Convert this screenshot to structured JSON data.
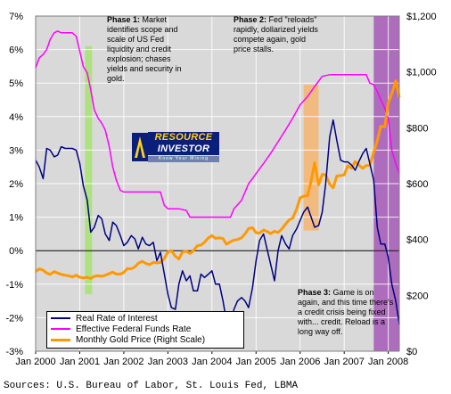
{
  "source": "Sources: U.S. Bureau of Labor, St. Louis Fed, LBMA",
  "logo": {
    "line1": "RESOURCE",
    "line2": "INVESTOR",
    "line3": "Know Your Mining"
  },
  "annotations": {
    "phase1": {
      "title": "Phase 1:",
      "text": "Market identifies scope and scale of US Fed liquidity and credit explosion; chases yields and security in gold."
    },
    "phase2": {
      "title": "Phase 2:",
      "text": "Fed \"reloads\" rapidly, dollarized yields compete again, gold price stalls."
    },
    "phase3": {
      "title": "Phase 3:",
      "text": "Game is on again, and this time there's a credit crisis being fixed with... credit. Reload is a long way off."
    }
  },
  "colors": {
    "plot_bg": "#d9d9d9",
    "real_rate": "#000080",
    "fed_funds": "#ff00ff",
    "gold": "#ff9900",
    "phase1": "#a6e36e",
    "phase2": "#f5b56e",
    "phase3": "#a85fb8"
  },
  "chart_data": {
    "type": "line",
    "title": "",
    "x_labels": [
      "Jan 2000",
      "Jan 2001",
      "Jan 2002",
      "Jan 2003",
      "Jan 2004",
      "Jan 2005",
      "Jan 2006",
      "Jan 2007",
      "Jan 2008"
    ],
    "xlim": [
      2000.0,
      2008.25
    ],
    "y_left": {
      "ylim": [
        -3,
        7
      ],
      "ticks": [
        "-3%",
        "-2%",
        "-1%",
        "0%",
        "1%",
        "2%",
        "3%",
        "4%",
        "5%",
        "6%",
        "7%"
      ]
    },
    "y_right": {
      "ylim": [
        0,
        1200
      ],
      "ticks": [
        "$0",
        "$200",
        "$400",
        "$600",
        "$800",
        "$1,000",
        "$1,200"
      ]
    },
    "grid": true,
    "legend_placement": "bottom-left",
    "shaded_regions": [
      {
        "phase": "phase1",
        "x": [
          2001.12,
          2001.28
        ],
        "y": [
          -1.3,
          6.1
        ]
      },
      {
        "phase": "phase2",
        "x": [
          2006.08,
          2006.42
        ],
        "y": [
          0.6,
          4.95
        ]
      },
      {
        "phase": "phase3",
        "x": [
          2007.67,
          2008.25
        ],
        "y": [
          -3,
          7
        ]
      }
    ],
    "series": [
      {
        "name": "Real Rate of Interest",
        "axis": "left",
        "points": [
          [
            2000.0,
            2.7
          ],
          [
            2000.08,
            2.5
          ],
          [
            2000.17,
            2.15
          ],
          [
            2000.25,
            3.05
          ],
          [
            2000.33,
            3.0
          ],
          [
            2000.42,
            2.8
          ],
          [
            2000.5,
            2.85
          ],
          [
            2000.58,
            3.1
          ],
          [
            2000.67,
            3.05
          ],
          [
            2000.75,
            3.05
          ],
          [
            2000.83,
            3.05
          ],
          [
            2000.92,
            3.0
          ],
          [
            2001.0,
            2.6
          ],
          [
            2001.08,
            1.95
          ],
          [
            2001.17,
            1.5
          ],
          [
            2001.25,
            0.55
          ],
          [
            2001.33,
            0.7
          ],
          [
            2001.42,
            1.05
          ],
          [
            2001.5,
            0.95
          ],
          [
            2001.58,
            0.5
          ],
          [
            2001.67,
            0.3
          ],
          [
            2001.75,
            0.85
          ],
          [
            2001.83,
            0.75
          ],
          [
            2001.92,
            0.45
          ],
          [
            2002.0,
            0.15
          ],
          [
            2002.08,
            0.25
          ],
          [
            2002.17,
            0.45
          ],
          [
            2002.25,
            0.35
          ],
          [
            2002.33,
            0.05
          ],
          [
            2002.42,
            0.4
          ],
          [
            2002.5,
            0.2
          ],
          [
            2002.58,
            0.15
          ],
          [
            2002.67,
            0.25
          ],
          [
            2002.75,
            -0.3
          ],
          [
            2002.83,
            -0.05
          ],
          [
            2002.92,
            -0.7
          ],
          [
            2003.0,
            -1.3
          ],
          [
            2003.08,
            -1.7
          ],
          [
            2003.17,
            -1.75
          ],
          [
            2003.25,
            -1.0
          ],
          [
            2003.33,
            -0.6
          ],
          [
            2003.42,
            -0.9
          ],
          [
            2003.5,
            -0.75
          ],
          [
            2003.58,
            -1.2
          ],
          [
            2003.67,
            -1.2
          ],
          [
            2003.75,
            -0.7
          ],
          [
            2003.83,
            -0.8
          ],
          [
            2003.92,
            -0.7
          ],
          [
            2004.0,
            -0.6
          ],
          [
            2004.08,
            -1.0
          ],
          [
            2004.17,
            -1.0
          ],
          [
            2004.25,
            -1.5
          ],
          [
            2004.33,
            -2.1
          ],
          [
            2004.42,
            -2.2
          ],
          [
            2004.5,
            -1.75
          ],
          [
            2004.58,
            -1.5
          ],
          [
            2004.67,
            -1.4
          ],
          [
            2004.75,
            -1.5
          ],
          [
            2004.83,
            -1.7
          ],
          [
            2004.92,
            -1.1
          ],
          [
            2005.0,
            -0.3
          ],
          [
            2005.08,
            0.3
          ],
          [
            2005.17,
            0.5
          ],
          [
            2005.25,
            0.05
          ],
          [
            2005.33,
            -0.4
          ],
          [
            2005.42,
            -0.9
          ],
          [
            2005.5,
            0.0
          ],
          [
            2005.58,
            0.45
          ],
          [
            2005.67,
            0.2
          ],
          [
            2005.75,
            0.05
          ],
          [
            2005.83,
            0.45
          ],
          [
            2005.92,
            0.65
          ],
          [
            2006.0,
            0.9
          ],
          [
            2006.08,
            1.15
          ],
          [
            2006.17,
            1.3
          ],
          [
            2006.25,
            1.0
          ],
          [
            2006.33,
            0.7
          ],
          [
            2006.42,
            0.75
          ],
          [
            2006.5,
            1.15
          ],
          [
            2006.58,
            2.0
          ],
          [
            2006.67,
            3.4
          ],
          [
            2006.75,
            3.9
          ],
          [
            2006.83,
            3.3
          ],
          [
            2006.92,
            2.7
          ],
          [
            2007.0,
            2.65
          ],
          [
            2007.08,
            2.65
          ],
          [
            2007.17,
            2.55
          ],
          [
            2007.25,
            2.4
          ],
          [
            2007.33,
            2.65
          ],
          [
            2007.42,
            2.9
          ],
          [
            2007.5,
            3.05
          ],
          [
            2007.58,
            2.6
          ],
          [
            2007.67,
            2.1
          ],
          [
            2007.75,
            0.7
          ],
          [
            2007.83,
            0.2
          ],
          [
            2007.92,
            0.2
          ],
          [
            2008.0,
            -0.2
          ],
          [
            2008.08,
            -1.0
          ],
          [
            2008.17,
            -1.5
          ],
          [
            2008.25,
            -2.2
          ]
        ]
      },
      {
        "name": "Effective Federal Funds Rate",
        "axis": "left",
        "points": [
          [
            2000.0,
            5.45
          ],
          [
            2000.08,
            5.75
          ],
          [
            2000.17,
            5.85
          ],
          [
            2000.25,
            6.0
          ],
          [
            2000.33,
            6.3
          ],
          [
            2000.42,
            6.5
          ],
          [
            2000.5,
            6.55
          ],
          [
            2000.58,
            6.5
          ],
          [
            2000.67,
            6.5
          ],
          [
            2000.75,
            6.5
          ],
          [
            2000.83,
            6.5
          ],
          [
            2000.92,
            6.4
          ],
          [
            2001.0,
            5.95
          ],
          [
            2001.08,
            5.5
          ],
          [
            2001.17,
            5.3
          ],
          [
            2001.25,
            4.8
          ],
          [
            2001.33,
            4.2
          ],
          [
            2001.42,
            3.95
          ],
          [
            2001.5,
            3.8
          ],
          [
            2001.58,
            3.6
          ],
          [
            2001.67,
            3.1
          ],
          [
            2001.75,
            2.5
          ],
          [
            2001.83,
            2.1
          ],
          [
            2001.92,
            1.8
          ],
          [
            2002.0,
            1.75
          ],
          [
            2002.33,
            1.75
          ],
          [
            2002.67,
            1.75
          ],
          [
            2002.83,
            1.75
          ],
          [
            2002.92,
            1.35
          ],
          [
            2003.0,
            1.25
          ],
          [
            2003.25,
            1.25
          ],
          [
            2003.42,
            1.2
          ],
          [
            2003.5,
            1.0
          ],
          [
            2004.0,
            1.0
          ],
          [
            2004.42,
            1.0
          ],
          [
            2004.5,
            1.25
          ],
          [
            2004.67,
            1.5
          ],
          [
            2004.83,
            2.0
          ],
          [
            2004.92,
            2.15
          ],
          [
            2005.0,
            2.3
          ],
          [
            2005.17,
            2.6
          ],
          [
            2005.33,
            2.9
          ],
          [
            2005.5,
            3.25
          ],
          [
            2005.67,
            3.6
          ],
          [
            2005.83,
            3.95
          ],
          [
            2006.0,
            4.35
          ],
          [
            2006.17,
            4.6
          ],
          [
            2006.33,
            4.9
          ],
          [
            2006.5,
            5.2
          ],
          [
            2006.67,
            5.25
          ],
          [
            2007.0,
            5.25
          ],
          [
            2007.5,
            5.25
          ],
          [
            2007.58,
            5.0
          ],
          [
            2007.67,
            4.95
          ],
          [
            2007.75,
            4.75
          ],
          [
            2007.83,
            4.5
          ],
          [
            2007.92,
            4.25
          ],
          [
            2008.0,
            3.95
          ],
          [
            2008.08,
            3.0
          ],
          [
            2008.17,
            2.6
          ],
          [
            2008.25,
            2.3
          ]
        ]
      },
      {
        "name": "Monthly Gold Price (Right Scale)",
        "axis": "right",
        "points": [
          [
            2000.0,
            285
          ],
          [
            2000.08,
            295
          ],
          [
            2000.17,
            290
          ],
          [
            2000.25,
            280
          ],
          [
            2000.33,
            275
          ],
          [
            2000.42,
            285
          ],
          [
            2000.5,
            280
          ],
          [
            2000.58,
            275
          ],
          [
            2000.67,
            272
          ],
          [
            2000.75,
            270
          ],
          [
            2000.83,
            266
          ],
          [
            2000.92,
            272
          ],
          [
            2001.0,
            265
          ],
          [
            2001.08,
            262
          ],
          [
            2001.17,
            265
          ],
          [
            2001.25,
            260
          ],
          [
            2001.33,
            268
          ],
          [
            2001.42,
            270
          ],
          [
            2001.5,
            268
          ],
          [
            2001.58,
            272
          ],
          [
            2001.67,
            278
          ],
          [
            2001.75,
            283
          ],
          [
            2001.83,
            276
          ],
          [
            2001.92,
            276
          ],
          [
            2002.0,
            282
          ],
          [
            2002.08,
            296
          ],
          [
            2002.17,
            295
          ],
          [
            2002.25,
            302
          ],
          [
            2002.33,
            315
          ],
          [
            2002.42,
            322
          ],
          [
            2002.5,
            314
          ],
          [
            2002.58,
            310
          ],
          [
            2002.67,
            318
          ],
          [
            2002.75,
            316
          ],
          [
            2002.83,
            318
          ],
          [
            2002.92,
            332
          ],
          [
            2003.0,
            356
          ],
          [
            2003.08,
            360
          ],
          [
            2003.17,
            340
          ],
          [
            2003.25,
            330
          ],
          [
            2003.33,
            355
          ],
          [
            2003.42,
            358
          ],
          [
            2003.5,
            350
          ],
          [
            2003.58,
            360
          ],
          [
            2003.67,
            378
          ],
          [
            2003.75,
            380
          ],
          [
            2003.83,
            390
          ],
          [
            2003.92,
            406
          ],
          [
            2004.0,
            414
          ],
          [
            2004.08,
            404
          ],
          [
            2004.17,
            406
          ],
          [
            2004.25,
            403
          ],
          [
            2004.33,
            383
          ],
          [
            2004.42,
            392
          ],
          [
            2004.5,
            398
          ],
          [
            2004.58,
            400
          ],
          [
            2004.67,
            406
          ],
          [
            2004.75,
            420
          ],
          [
            2004.83,
            439
          ],
          [
            2004.92,
            442
          ],
          [
            2005.0,
            424
          ],
          [
            2005.08,
            423
          ],
          [
            2005.17,
            434
          ],
          [
            2005.25,
            429
          ],
          [
            2005.33,
            421
          ],
          [
            2005.42,
            430
          ],
          [
            2005.5,
            425
          ],
          [
            2005.58,
            437
          ],
          [
            2005.67,
            455
          ],
          [
            2005.75,
            470
          ],
          [
            2005.83,
            476
          ],
          [
            2005.92,
            509
          ],
          [
            2006.0,
            549
          ],
          [
            2006.08,
            555
          ],
          [
            2006.17,
            557
          ],
          [
            2006.25,
            610
          ],
          [
            2006.33,
            675
          ],
          [
            2006.42,
            596
          ],
          [
            2006.5,
            633
          ],
          [
            2006.58,
            632
          ],
          [
            2006.67,
            598
          ],
          [
            2006.75,
            585
          ],
          [
            2006.83,
            627
          ],
          [
            2006.92,
            629
          ],
          [
            2007.0,
            631
          ],
          [
            2007.08,
            664
          ],
          [
            2007.17,
            655
          ],
          [
            2007.25,
            679
          ],
          [
            2007.33,
            667
          ],
          [
            2007.42,
            655
          ],
          [
            2007.5,
            665
          ],
          [
            2007.58,
            665
          ],
          [
            2007.67,
            712
          ],
          [
            2007.75,
            754
          ],
          [
            2007.83,
            806
          ],
          [
            2007.92,
            803
          ],
          [
            2008.0,
            889
          ],
          [
            2008.08,
            922
          ],
          [
            2008.17,
            968
          ],
          [
            2008.25,
            909
          ]
        ]
      }
    ]
  }
}
